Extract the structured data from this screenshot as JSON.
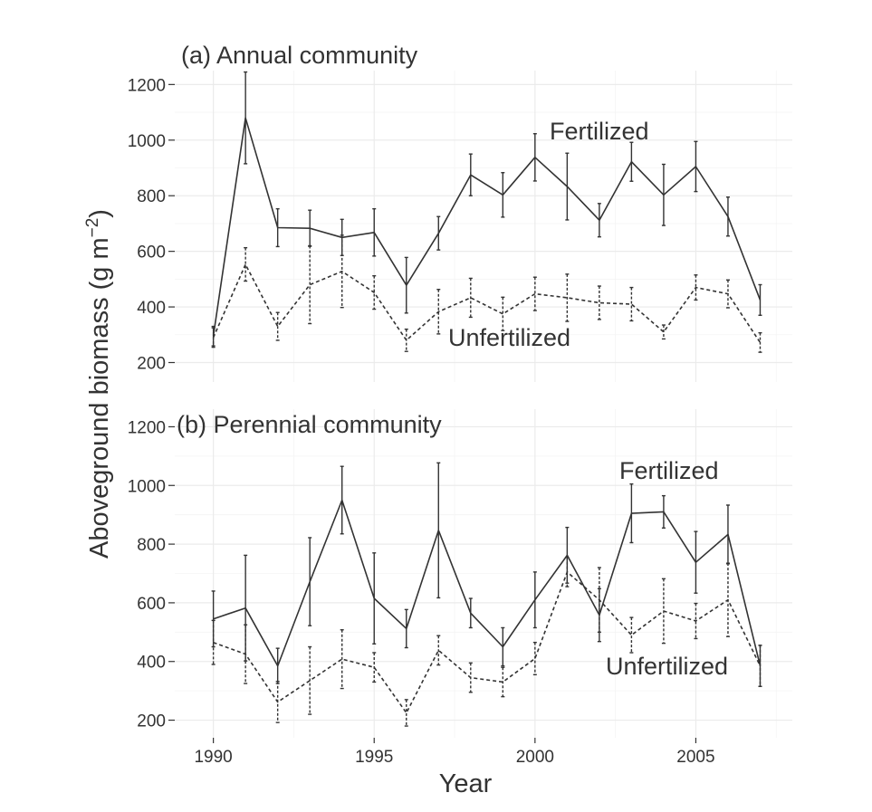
{
  "chart_data": [
    {
      "type": "line",
      "title": "(a) Annual community",
      "x": [
        1990,
        1991,
        1992,
        1993,
        1994,
        1995,
        1996,
        1997,
        1998,
        1999,
        2000,
        2001,
        2002,
        2003,
        2004,
        2005,
        2006,
        2007
      ],
      "series": [
        {
          "name": "Fertilized",
          "line_style": "solid",
          "values": [
            295,
            1080,
            685,
            683,
            650,
            668,
            478,
            665,
            875,
            803,
            938,
            833,
            712,
            922,
            803,
            905,
            725,
            425
          ],
          "error": [
            35,
            165,
            68,
            65,
            65,
            85,
            100,
            60,
            75,
            80,
            85,
            120,
            60,
            70,
            110,
            90,
            70,
            55
          ]
        },
        {
          "name": "Unfertilized",
          "line_style": "dashed",
          "values": [
            290,
            553,
            330,
            480,
            528,
            452,
            280,
            383,
            433,
            375,
            447,
            433,
            415,
            410,
            310,
            470,
            447,
            272
          ],
          "error": [
            35,
            60,
            50,
            140,
            130,
            60,
            40,
            80,
            70,
            60,
            60,
            85,
            60,
            60,
            25,
            45,
            50,
            35
          ]
        }
      ],
      "xlim": [
        1988.8,
        2008
      ],
      "ylim": [
        130,
        1250
      ],
      "yticks": [
        "200",
        "400",
        "600",
        "800",
        "1000",
        "1200"
      ],
      "grid": true
    },
    {
      "type": "line",
      "title": "(b) Perennial community",
      "x": [
        1990,
        1991,
        1992,
        1993,
        1994,
        1995,
        1996,
        1997,
        1998,
        1999,
        2000,
        2001,
        2002,
        2003,
        2004,
        2005,
        2006,
        2007
      ],
      "series": [
        {
          "name": "Fertilized",
          "line_style": "solid",
          "values": [
            545,
            582,
            385,
            672,
            950,
            615,
            512,
            847,
            565,
            450,
            610,
            762,
            558,
            905,
            910,
            738,
            833,
            385
          ],
          "error": [
            95,
            180,
            60,
            150,
            115,
            155,
            65,
            230,
            50,
            65,
            95,
            95,
            90,
            100,
            55,
            105,
            100,
            70
          ]
        },
        {
          "name": "Unfertilized",
          "line_style": "dashed",
          "values": [
            465,
            425,
            262,
            335,
            408,
            380,
            225,
            438,
            345,
            330,
            410,
            705,
            610,
            490,
            572,
            538,
            610,
            385
          ],
          "error": [
            75,
            100,
            70,
            115,
            100,
            50,
            45,
            50,
            50,
            50,
            55,
            50,
            110,
            60,
            110,
            60,
            125,
            70
          ]
        }
      ],
      "xlim": [
        1988.8,
        2008
      ],
      "ylim": [
        140,
        1260
      ],
      "yticks": [
        "200",
        "400",
        "600",
        "800",
        "1000",
        "1200"
      ],
      "xticks": [
        "1990",
        "1995",
        "2000",
        "2005"
      ],
      "grid": true
    }
  ],
  "axes": {
    "xlabel": "Year",
    "ylabel": "Aboveground biomass (g m",
    "ylabel_sup": "−2",
    "ylabel_end": ")"
  }
}
